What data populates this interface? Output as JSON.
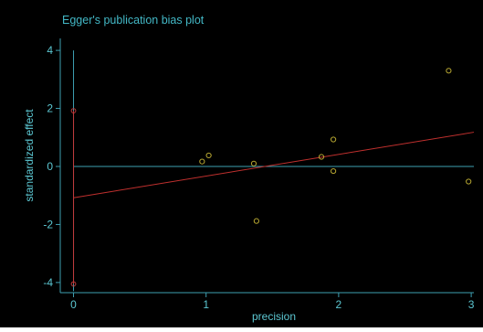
{
  "chart_data": {
    "type": "scatter",
    "title": "Egger's publication bias plot",
    "xlabel": "precision",
    "ylabel": "standardized effect",
    "xlim": [
      -0.1,
      3.02
    ],
    "ylim": [
      -4.35,
      4.35
    ],
    "x_ticks": [
      {
        "value": 0,
        "label": "0"
      },
      {
        "value": 1,
        "label": "1"
      },
      {
        "value": 2,
        "label": "2"
      },
      {
        "value": 3,
        "label": "3"
      }
    ],
    "y_ticks": [
      {
        "value": -4,
        "label": "-4"
      },
      {
        "value": -2,
        "label": "-2"
      },
      {
        "value": 0,
        "label": "0"
      },
      {
        "value": 2,
        "label": "2"
      },
      {
        "value": 4,
        "label": "4"
      }
    ],
    "points": [
      {
        "x": 0.97,
        "y": 0.17
      },
      {
        "x": 1.02,
        "y": 0.38
      },
      {
        "x": 1.36,
        "y": 0.1
      },
      {
        "x": 1.38,
        "y": -1.88
      },
      {
        "x": 1.87,
        "y": 0.33
      },
      {
        "x": 1.96,
        "y": 0.93
      },
      {
        "x": 1.96,
        "y": -0.16
      },
      {
        "x": 2.83,
        "y": 3.3
      },
      {
        "x": 2.98,
        "y": -0.52
      }
    ],
    "regression_line": {
      "x0": 0,
      "y0": -1.08,
      "x1": 3.02,
      "y1": 1.18
    },
    "intercept_ci": {
      "x": 0,
      "low": -4.05,
      "high": 1.92
    },
    "zero_line_y": 0,
    "y_axis_line": {
      "from": -4.3,
      "to": 4
    },
    "grid": false,
    "colors": {
      "background": "#000000",
      "title": "#43b8c6",
      "axis": "#3e9fb1",
      "tick_label": "#5cc7d2",
      "points": "#b5a531",
      "regression": "#c0302e",
      "ci": "#c03a3a"
    }
  }
}
